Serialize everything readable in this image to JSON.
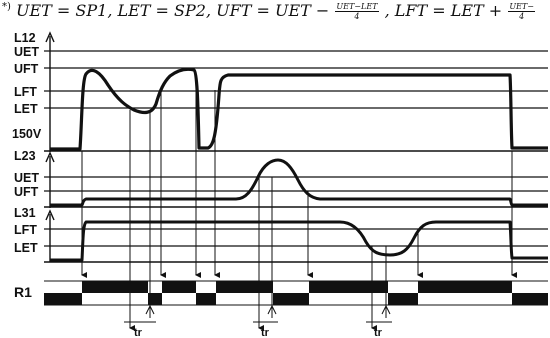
{
  "formula": {
    "footnote": "*)",
    "part1": "UET = SP1, LET = SP2, UFT = UET −",
    "frac_num": "UET−LET",
    "frac_den": "4",
    "part2": ", LFT = LET +",
    "frac2_num": "UET−",
    "frac2_den": "4"
  },
  "panels": {
    "l12": {
      "channel": "L12",
      "levels": [
        "UET",
        "UFT",
        "LFT",
        "LET",
        "150V"
      ]
    },
    "l23": {
      "channel": "L23",
      "levels": [
        "UET",
        "UFT"
      ]
    },
    "l31": {
      "channel": "L31",
      "levels": [
        "LFT",
        "LET"
      ]
    }
  },
  "relay": {
    "label": "R1"
  },
  "delay_label": "tr"
}
